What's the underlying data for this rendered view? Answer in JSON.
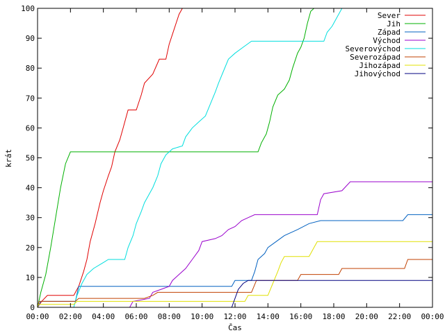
{
  "chart_data": {
    "type": "line",
    "xlabel": "Čas",
    "ylabel": "krát",
    "xlim": [
      0,
      24
    ],
    "ylim": [
      0,
      100
    ],
    "x_tick_values": [
      0,
      2,
      4,
      6,
      8,
      10,
      12,
      14,
      16,
      18,
      20,
      22,
      24
    ],
    "x_tick_labels": [
      "00:00",
      "02:00",
      "04:00",
      "06:00",
      "08:00",
      "10:00",
      "12:00",
      "14:00",
      "16:00",
      "18:00",
      "20:00",
      "22:00",
      "00:00"
    ],
    "y_ticks": [
      0,
      10,
      20,
      30,
      40,
      50,
      60,
      70,
      80,
      90,
      100
    ],
    "grid": false,
    "legend_position": "top-right",
    "series": [
      {
        "name": "Sever",
        "color": "#e00000",
        "points": [
          [
            0,
            0
          ],
          [
            0.25,
            2
          ],
          [
            0.6,
            4
          ],
          [
            2.2,
            4
          ],
          [
            2.5,
            7
          ],
          [
            2.8,
            12
          ],
          [
            3.0,
            16
          ],
          [
            3.2,
            22
          ],
          [
            3.5,
            28
          ],
          [
            3.8,
            35
          ],
          [
            4.0,
            39
          ],
          [
            4.3,
            44
          ],
          [
            4.5,
            47
          ],
          [
            4.7,
            52
          ],
          [
            5.0,
            56
          ],
          [
            5.2,
            60
          ],
          [
            5.5,
            66
          ],
          [
            6.0,
            66
          ],
          [
            6.3,
            71
          ],
          [
            6.5,
            75
          ],
          [
            7.0,
            78
          ],
          [
            7.4,
            83
          ],
          [
            7.8,
            83
          ],
          [
            8.0,
            88
          ],
          [
            8.3,
            93
          ],
          [
            8.6,
            98
          ],
          [
            8.8,
            100
          ]
        ]
      },
      {
        "name": "Jih",
        "color": "#00b000",
        "points": [
          [
            0,
            0
          ],
          [
            0.2,
            5
          ],
          [
            0.5,
            11
          ],
          [
            0.8,
            20
          ],
          [
            1.1,
            30
          ],
          [
            1.4,
            40
          ],
          [
            1.7,
            48
          ],
          [
            2.0,
            52
          ],
          [
            5.0,
            52
          ],
          [
            10.0,
            52
          ],
          [
            13.4,
            52
          ],
          [
            13.6,
            55
          ],
          [
            13.9,
            58
          ],
          [
            14.1,
            62
          ],
          [
            14.3,
            67
          ],
          [
            14.6,
            71
          ],
          [
            15.0,
            73
          ],
          [
            15.3,
            76
          ],
          [
            15.5,
            80
          ],
          [
            15.8,
            85
          ],
          [
            16.0,
            87
          ],
          [
            16.2,
            90
          ],
          [
            16.4,
            95
          ],
          [
            16.6,
            99
          ],
          [
            16.8,
            100
          ]
        ]
      },
      {
        "name": "Západ",
        "color": "#0060c0",
        "points": [
          [
            0,
            0
          ],
          [
            0.2,
            2
          ],
          [
            2.3,
            2
          ],
          [
            2.5,
            7
          ],
          [
            8.0,
            7
          ],
          [
            11.8,
            7
          ],
          [
            12.0,
            9
          ],
          [
            13.0,
            9
          ],
          [
            13.2,
            12
          ],
          [
            13.4,
            16
          ],
          [
            13.8,
            18
          ],
          [
            14.0,
            20
          ],
          [
            14.5,
            22
          ],
          [
            15.0,
            24
          ],
          [
            15.8,
            26
          ],
          [
            16.5,
            28
          ],
          [
            17.2,
            29
          ],
          [
            22.2,
            29
          ],
          [
            22.5,
            31
          ],
          [
            24,
            31
          ]
        ]
      },
      {
        "name": "Východ",
        "color": "#9900cc",
        "points": [
          [
            0,
            0
          ],
          [
            5.6,
            0
          ],
          [
            5.8,
            2
          ],
          [
            6.8,
            3
          ],
          [
            7.0,
            5
          ],
          [
            7.5,
            6
          ],
          [
            8.0,
            7
          ],
          [
            8.2,
            9
          ],
          [
            8.6,
            11
          ],
          [
            9.0,
            13
          ],
          [
            9.4,
            16
          ],
          [
            9.8,
            19
          ],
          [
            10.0,
            22
          ],
          [
            10.8,
            23
          ],
          [
            11.2,
            24
          ],
          [
            11.6,
            26
          ],
          [
            12.0,
            27
          ],
          [
            12.4,
            29
          ],
          [
            12.8,
            30
          ],
          [
            13.2,
            31
          ],
          [
            17.0,
            31
          ],
          [
            17.2,
            36
          ],
          [
            17.4,
            38
          ],
          [
            18.5,
            39
          ],
          [
            19.0,
            42
          ],
          [
            24,
            42
          ],
          [
            24,
            43
          ]
        ]
      },
      {
        "name": "Severovýchod",
        "color": "#00dede",
        "points": [
          [
            0,
            0
          ],
          [
            2.2,
            0
          ],
          [
            2.4,
            4
          ],
          [
            2.7,
            8
          ],
          [
            3.0,
            11
          ],
          [
            3.4,
            13
          ],
          [
            4.0,
            15
          ],
          [
            4.3,
            16
          ],
          [
            5.3,
            16
          ],
          [
            5.5,
            20
          ],
          [
            5.8,
            24
          ],
          [
            6.0,
            28
          ],
          [
            6.3,
            32
          ],
          [
            6.5,
            35
          ],
          [
            6.8,
            38
          ],
          [
            7.0,
            40
          ],
          [
            7.3,
            44
          ],
          [
            7.5,
            48
          ],
          [
            7.8,
            51
          ],
          [
            8.2,
            53
          ],
          [
            8.8,
            54
          ],
          [
            9.0,
            57
          ],
          [
            9.4,
            60
          ],
          [
            9.8,
            62
          ],
          [
            10.2,
            64
          ],
          [
            10.5,
            68
          ],
          [
            10.8,
            72
          ],
          [
            11.0,
            75
          ],
          [
            11.3,
            79
          ],
          [
            11.6,
            83
          ],
          [
            12.0,
            85
          ],
          [
            12.5,
            87
          ],
          [
            13.0,
            89
          ],
          [
            17.4,
            89
          ],
          [
            17.6,
            92
          ],
          [
            17.9,
            94
          ],
          [
            18.2,
            97
          ],
          [
            18.5,
            100
          ]
        ]
      },
      {
        "name": "Severozápad",
        "color": "#c04000",
        "points": [
          [
            0,
            0
          ],
          [
            0.1,
            2
          ],
          [
            2.3,
            2
          ],
          [
            2.5,
            3
          ],
          [
            6.5,
            3
          ],
          [
            7.0,
            4
          ],
          [
            7.3,
            5
          ],
          [
            13.0,
            5
          ],
          [
            13.3,
            9
          ],
          [
            15.8,
            9
          ],
          [
            16.0,
            11
          ],
          [
            18.3,
            11
          ],
          [
            18.5,
            13
          ],
          [
            22.3,
            13
          ],
          [
            22.5,
            16
          ],
          [
            24,
            16
          ]
        ]
      },
      {
        "name": "Jihozápad",
        "color": "#e0e000",
        "points": [
          [
            0,
            0
          ],
          [
            0.05,
            1
          ],
          [
            2.2,
            1
          ],
          [
            2.4,
            2
          ],
          [
            12.6,
            2
          ],
          [
            12.8,
            4
          ],
          [
            14.0,
            4
          ],
          [
            14.3,
            8
          ],
          [
            14.6,
            12
          ],
          [
            14.8,
            15
          ],
          [
            15.0,
            17
          ],
          [
            16.5,
            17
          ],
          [
            16.8,
            20
          ],
          [
            17.0,
            22
          ],
          [
            24,
            22
          ]
        ]
      },
      {
        "name": "Jihovýchod",
        "color": "#000080",
        "points": [
          [
            0,
            0
          ],
          [
            11.8,
            0
          ],
          [
            12.0,
            3
          ],
          [
            12.2,
            6
          ],
          [
            12.5,
            8
          ],
          [
            12.8,
            9
          ],
          [
            24,
            9
          ]
        ]
      }
    ]
  }
}
